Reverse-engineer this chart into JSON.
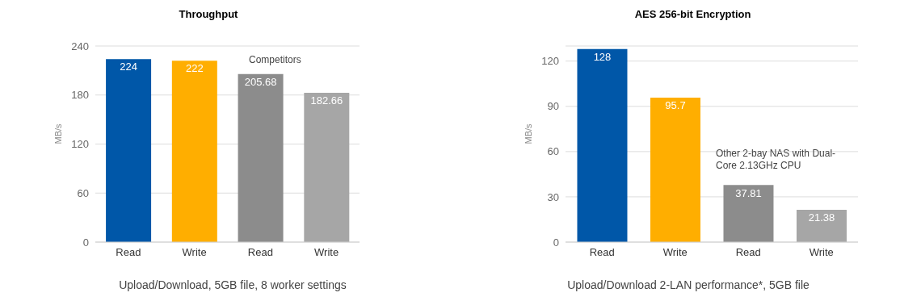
{
  "chart_data": [
    {
      "type": "bar",
      "title": "Throughput",
      "ylabel": "MB/s",
      "categories": [
        "Read",
        "Write",
        "Read",
        "Write"
      ],
      "values": [
        224,
        222,
        205.68,
        182.66
      ],
      "colors": [
        "#0057a8",
        "#ffae00",
        "#8c8c8c",
        "#a6a6a6"
      ],
      "ylim": [
        0,
        240
      ],
      "yticks": [
        0,
        60,
        120,
        180,
        240
      ],
      "grid": "y",
      "data_labels": true,
      "annotations": [
        "Competitors",
        "Upload/Download, 5GB file, 8 worker settings"
      ]
    },
    {
      "type": "bar",
      "title": "AES 256-bit Encryption",
      "ylabel": "MB/s",
      "categories": [
        "Read",
        "Write",
        "Read",
        "Write"
      ],
      "values": [
        128,
        95.7,
        37.81,
        21.38
      ],
      "colors": [
        "#0057a8",
        "#ffae00",
        "#8c8c8c",
        "#a6a6a6"
      ],
      "ylim": [
        0,
        130
      ],
      "yticks": [
        0,
        30,
        60,
        90,
        120
      ],
      "grid": "y",
      "data_labels": true,
      "annotations": [
        "Other 2-bay NAS with Dual-Core 2.13GHz CPU",
        "Upload/Download 2-LAN performance*, 5GB file"
      ]
    }
  ]
}
